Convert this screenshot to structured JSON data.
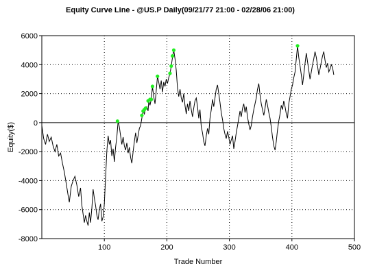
{
  "chart_data": {
    "type": "line",
    "title": "Equity Curve Line - @US.P Daily(09/21/77 21:00 - 02/28/06 21:00)",
    "xlabel": "Trade Number",
    "ylabel": "Equity($)",
    "xlim": [
      0,
      500
    ],
    "ylim": [
      -8000,
      6000
    ],
    "xticks": [
      100,
      200,
      300,
      400,
      500
    ],
    "yticks": [
      6000,
      4000,
      2000,
      0,
      -2000,
      -4000,
      -6000,
      -8000
    ],
    "grid": true,
    "legend": "none",
    "colors": {
      "line": "#000000",
      "markers": "#22ee22",
      "zero_line": "#000000"
    },
    "series": [
      {
        "values": [
          [
            0,
            -200
          ],
          [
            3,
            -1100
          ],
          [
            6,
            -1500
          ],
          [
            9,
            -800
          ],
          [
            12,
            -1300
          ],
          [
            15,
            -1000
          ],
          [
            18,
            -1600
          ],
          [
            21,
            -2000
          ],
          [
            24,
            -1500
          ],
          [
            27,
            -2300
          ],
          [
            30,
            -2100
          ],
          [
            33,
            -2800
          ],
          [
            36,
            -3400
          ],
          [
            39,
            -4200
          ],
          [
            42,
            -5000
          ],
          [
            44,
            -5500
          ],
          [
            47,
            -4400
          ],
          [
            50,
            -4000
          ],
          [
            53,
            -3700
          ],
          [
            56,
            -4300
          ],
          [
            59,
            -5100
          ],
          [
            62,
            -4500
          ],
          [
            64,
            -5700
          ],
          [
            66,
            -6300
          ],
          [
            68,
            -6900
          ],
          [
            70,
            -6400
          ],
          [
            72,
            -6800
          ],
          [
            74,
            -7100
          ],
          [
            76,
            -6200
          ],
          [
            78,
            -6900
          ],
          [
            80,
            -5900
          ],
          [
            82,
            -4600
          ],
          [
            84,
            -5200
          ],
          [
            86,
            -5700
          ],
          [
            88,
            -6400
          ],
          [
            90,
            -6700
          ],
          [
            92,
            -6000
          ],
          [
            94,
            -5600
          ],
          [
            96,
            -6800
          ],
          [
            98,
            -6500
          ],
          [
            100,
            -5600
          ],
          [
            102,
            -3800
          ],
          [
            104,
            -2000
          ],
          [
            106,
            -900
          ],
          [
            108,
            -1500
          ],
          [
            110,
            -1200
          ],
          [
            112,
            -2300
          ],
          [
            114,
            -1800
          ],
          [
            116,
            -2700
          ],
          [
            118,
            -1700
          ],
          [
            120,
            -1000
          ],
          [
            122,
            100
          ],
          [
            124,
            -300
          ],
          [
            126,
            -900
          ],
          [
            128,
            -1500
          ],
          [
            130,
            -1000
          ],
          [
            132,
            -1600
          ],
          [
            134,
            -1900
          ],
          [
            136,
            -1400
          ],
          [
            138,
            -2100
          ],
          [
            140,
            -1700
          ],
          [
            142,
            -2400
          ],
          [
            144,
            -2800
          ],
          [
            146,
            -2000
          ],
          [
            148,
            -1300
          ],
          [
            150,
            -700
          ],
          [
            152,
            -1400
          ],
          [
            154,
            -900
          ],
          [
            156,
            -400
          ],
          [
            158,
            -200
          ],
          [
            160,
            300
          ],
          [
            162,
            800
          ],
          [
            164,
            600
          ],
          [
            166,
            1000
          ],
          [
            168,
            1100
          ],
          [
            170,
            800
          ],
          [
            171,
            1500
          ],
          [
            173,
            1200
          ],
          [
            175,
            1600
          ],
          [
            177,
            2500
          ],
          [
            179,
            1800
          ],
          [
            181,
            1300
          ],
          [
            183,
            2200
          ],
          [
            185,
            3200
          ],
          [
            187,
            2800
          ],
          [
            189,
            2300
          ],
          [
            191,
            2900
          ],
          [
            193,
            2100
          ],
          [
            195,
            2800
          ],
          [
            197,
            2500
          ],
          [
            199,
            3000
          ],
          [
            201,
            2700
          ],
          [
            203,
            3100
          ],
          [
            205,
            3400
          ],
          [
            207,
            3900
          ],
          [
            209,
            4500
          ],
          [
            211,
            5000
          ],
          [
            213,
            4400
          ],
          [
            215,
            3600
          ],
          [
            217,
            2400
          ],
          [
            219,
            1800
          ],
          [
            221,
            2300
          ],
          [
            223,
            1700
          ],
          [
            225,
            1400
          ],
          [
            227,
            2000
          ],
          [
            229,
            1200
          ],
          [
            231,
            600
          ],
          [
            233,
            1300
          ],
          [
            235,
            800
          ],
          [
            237,
            1500
          ],
          [
            239,
            900
          ],
          [
            241,
            400
          ],
          [
            243,
            1000
          ],
          [
            245,
            1500
          ],
          [
            247,
            1700
          ],
          [
            249,
            1100
          ],
          [
            251,
            300
          ],
          [
            253,
            900
          ],
          [
            255,
            -300
          ],
          [
            257,
            -700
          ],
          [
            259,
            -1300
          ],
          [
            261,
            -1600
          ],
          [
            263,
            -900
          ],
          [
            265,
            -400
          ],
          [
            267,
            -800
          ],
          [
            269,
            300
          ],
          [
            271,
            900
          ],
          [
            273,
            1600
          ],
          [
            275,
            1100
          ],
          [
            277,
            1700
          ],
          [
            279,
            2300
          ],
          [
            281,
            2600
          ],
          [
            283,
            2000
          ],
          [
            285,
            1400
          ],
          [
            287,
            700
          ],
          [
            289,
            200
          ],
          [
            291,
            -400
          ],
          [
            293,
            -800
          ],
          [
            295,
            -1100
          ],
          [
            297,
            -600
          ],
          [
            299,
            -1000
          ],
          [
            301,
            -1500
          ],
          [
            303,
            -1200
          ],
          [
            305,
            -900
          ],
          [
            307,
            -1800
          ],
          [
            309,
            -1300
          ],
          [
            311,
            -700
          ],
          [
            313,
            -200
          ],
          [
            315,
            300
          ],
          [
            317,
            800
          ],
          [
            319,
            400
          ],
          [
            321,
            1000
          ],
          [
            323,
            1300
          ],
          [
            325,
            700
          ],
          [
            327,
            1100
          ],
          [
            329,
            400
          ],
          [
            331,
            -100
          ],
          [
            333,
            -500
          ],
          [
            335,
            -200
          ],
          [
            337,
            400
          ],
          [
            339,
            900
          ],
          [
            341,
            1300
          ],
          [
            343,
            1700
          ],
          [
            345,
            2300
          ],
          [
            347,
            2700
          ],
          [
            349,
            1900
          ],
          [
            351,
            1300
          ],
          [
            353,
            900
          ],
          [
            355,
            500
          ],
          [
            357,
            1000
          ],
          [
            359,
            1600
          ],
          [
            361,
            1200
          ],
          [
            363,
            700
          ],
          [
            365,
            300
          ],
          [
            367,
            -300
          ],
          [
            369,
            -1000
          ],
          [
            371,
            -1600
          ],
          [
            373,
            -1900
          ],
          [
            375,
            -1300
          ],
          [
            377,
            -500
          ],
          [
            379,
            100
          ],
          [
            381,
            600
          ],
          [
            383,
            1200
          ],
          [
            385,
            900
          ],
          [
            387,
            1500
          ],
          [
            389,
            1100
          ],
          [
            391,
            600
          ],
          [
            393,
            300
          ],
          [
            395,
            1300
          ],
          [
            397,
            1800
          ],
          [
            399,
            2300
          ],
          [
            401,
            2600
          ],
          [
            403,
            3100
          ],
          [
            405,
            3500
          ],
          [
            407,
            4400
          ],
          [
            409,
            5300
          ],
          [
            411,
            4500
          ],
          [
            413,
            3900
          ],
          [
            415,
            3300
          ],
          [
            417,
            2600
          ],
          [
            419,
            3300
          ],
          [
            421,
            4100
          ],
          [
            423,
            4800
          ],
          [
            425,
            4200
          ],
          [
            427,
            3600
          ],
          [
            429,
            3000
          ],
          [
            431,
            3500
          ],
          [
            433,
            4000
          ],
          [
            435,
            4400
          ],
          [
            437,
            4900
          ],
          [
            439,
            4500
          ],
          [
            441,
            3900
          ],
          [
            443,
            3300
          ],
          [
            445,
            3700
          ],
          [
            447,
            4200
          ],
          [
            449,
            4600
          ],
          [
            451,
            4900
          ],
          [
            453,
            4300
          ],
          [
            455,
            3800
          ],
          [
            457,
            4100
          ],
          [
            459,
            3500
          ],
          [
            461,
            3700
          ],
          [
            463,
            4000
          ],
          [
            465,
            3800
          ],
          [
            467,
            3300
          ]
        ]
      }
    ],
    "new_highs": [
      [
        121,
        100
      ],
      [
        160,
        500
      ],
      [
        162,
        800
      ],
      [
        164,
        900
      ],
      [
        166,
        1000
      ],
      [
        170,
        1500
      ],
      [
        173,
        1600
      ],
      [
        175,
        1600
      ],
      [
        177,
        2500
      ],
      [
        185,
        3200
      ],
      [
        205,
        3400
      ],
      [
        207,
        3900
      ],
      [
        209,
        4600
      ],
      [
        211,
        5000
      ],
      [
        409,
        5300
      ]
    ]
  }
}
